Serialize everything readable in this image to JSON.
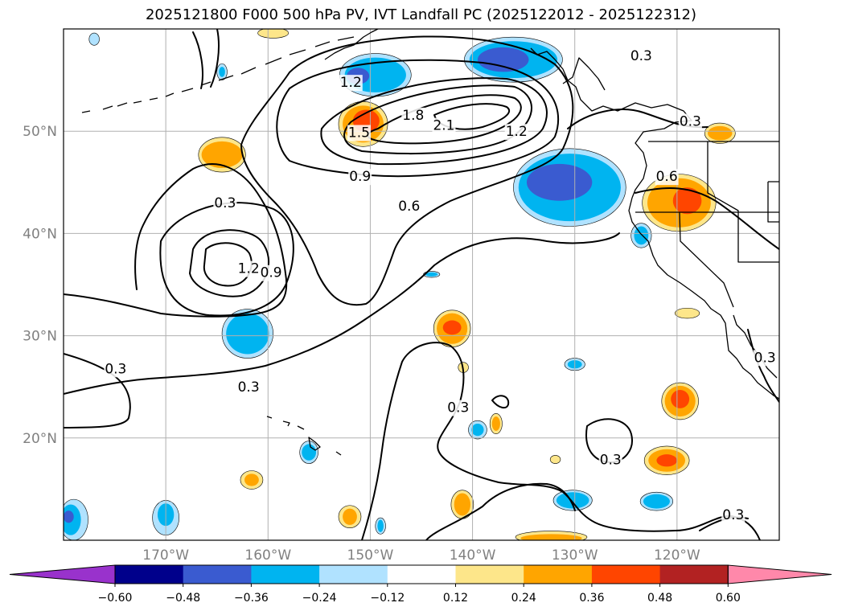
{
  "title": "2025121800 F000 500 hPa PV, IVT Landfall PC (2025122012 - 2025122312)",
  "map": {
    "lon_range": [
      -180,
      -110
    ],
    "lat_range": [
      10,
      60
    ],
    "lat_ticks": [
      {
        "value": 50,
        "label": "50°N"
      },
      {
        "value": 40,
        "label": "40°N"
      },
      {
        "value": 30,
        "label": "30°N"
      },
      {
        "value": 20,
        "label": "20°N"
      }
    ],
    "lon_ticks": [
      {
        "value": -170,
        "label": "170°W"
      },
      {
        "value": -160,
        "label": "160°W"
      },
      {
        "value": -150,
        "label": "150°W"
      },
      {
        "value": -140,
        "label": "140°W"
      },
      {
        "value": -130,
        "label": "130°W"
      },
      {
        "value": -120,
        "label": "120°W"
      }
    ],
    "grid": true
  },
  "contour_labels": [
    {
      "text": "1.2",
      "lon": -151.9,
      "lat": 54.8
    },
    {
      "text": "1.5",
      "lon": -151.1,
      "lat": 49.9
    },
    {
      "text": "1.8",
      "lon": -145.8,
      "lat": 51.6
    },
    {
      "text": "2.1",
      "lon": -142.8,
      "lat": 50.6
    },
    {
      "text": "1.2",
      "lon": -135.7,
      "lat": 50.0
    },
    {
      "text": "0.9",
      "lon": -151.0,
      "lat": 45.6
    },
    {
      "text": "0.6",
      "lon": -146.2,
      "lat": 42.7
    },
    {
      "text": "0.3",
      "lon": -164.2,
      "lat": 43.0
    },
    {
      "text": "1.2",
      "lon": -161.9,
      "lat": 36.6
    },
    {
      "text": "0.9",
      "lon": -159.7,
      "lat": 36.2
    },
    {
      "text": "0.3",
      "lon": -174.9,
      "lat": 26.8
    },
    {
      "text": "0.3",
      "lon": -161.9,
      "lat": 25.0
    },
    {
      "text": "0.3",
      "lon": -141.4,
      "lat": 23.0
    },
    {
      "text": "0.6",
      "lon": -121.0,
      "lat": 45.6
    },
    {
      "text": "0.3",
      "lon": -118.7,
      "lat": 51.0
    },
    {
      "text": "0.3",
      "lon": -123.5,
      "lat": 57.4
    },
    {
      "text": "0.3",
      "lon": -126.5,
      "lat": 17.9
    },
    {
      "text": "0.3",
      "lon": -114.5,
      "lat": 12.5
    },
    {
      "text": "0.3",
      "lon": -111.4,
      "lat": 27.9
    }
  ],
  "colorbar": {
    "tick_labels": [
      "−0.60",
      "−0.48",
      "−0.36",
      "−0.24",
      "−0.12",
      "0.12",
      "0.24",
      "0.36",
      "0.48",
      "0.60"
    ],
    "colors": [
      "#9932cc",
      "#00008b",
      "#3a5bd0",
      "#00b4f0",
      "#b0e2ff",
      "#ffffff",
      "#fde68a",
      "#ffa500",
      "#ff4500",
      "#b22222",
      "#ff88aa"
    ]
  },
  "field_blobs": [
    {
      "color": "#fde68a",
      "lon": -164.5,
      "lat": 47.7,
      "rx_deg": 2.3,
      "ry_deg": 1.7
    },
    {
      "color": "#ffa500",
      "lon": -164.5,
      "lat": 47.7,
      "rx_deg": 2.0,
      "ry_deg": 1.3
    },
    {
      "color": "#fde68a",
      "lon": -150.7,
      "lat": 50.7,
      "rx_deg": 2.4,
      "ry_deg": 2.2
    },
    {
      "color": "#ffa500",
      "lon": -150.7,
      "lat": 50.7,
      "rx_deg": 2.0,
      "ry_deg": 1.8
    },
    {
      "color": "#ff4500",
      "lon": -150.4,
      "lat": 51.0,
      "rx_deg": 1.3,
      "ry_deg": 1.1
    },
    {
      "color": "#b0e2ff",
      "lon": -149.5,
      "lat": 55.5,
      "rx_deg": 3.5,
      "ry_deg": 2.1
    },
    {
      "color": "#00b4f0",
      "lon": -149.5,
      "lat": 55.5,
      "rx_deg": 3.0,
      "ry_deg": 1.7
    },
    {
      "color": "#3a5bd0",
      "lon": -151.2,
      "lat": 55.4,
      "rx_deg": 1.1,
      "ry_deg": 0.8
    },
    {
      "color": "#b0e2ff",
      "lon": -136.0,
      "lat": 57.0,
      "rx_deg": 4.8,
      "ry_deg": 2.2
    },
    {
      "color": "#00b4f0",
      "lon": -136.0,
      "lat": 57.0,
      "rx_deg": 4.3,
      "ry_deg": 1.8
    },
    {
      "color": "#3a5bd0",
      "lon": -137.0,
      "lat": 57.0,
      "rx_deg": 2.5,
      "ry_deg": 1.2
    },
    {
      "color": "#b0e2ff",
      "lon": -130.5,
      "lat": 44.5,
      "rx_deg": 5.5,
      "ry_deg": 3.8
    },
    {
      "color": "#00b4f0",
      "lon": -130.5,
      "lat": 44.5,
      "rx_deg": 5.0,
      "ry_deg": 3.3
    },
    {
      "color": "#3a5bd0",
      "lon": -131.5,
      "lat": 45.0,
      "rx_deg": 3.2,
      "ry_deg": 1.8
    },
    {
      "color": "#fde68a",
      "lon": -119.8,
      "lat": 43.0,
      "rx_deg": 3.6,
      "ry_deg": 2.8
    },
    {
      "color": "#ffa500",
      "lon": -119.8,
      "lat": 43.0,
      "rx_deg": 3.1,
      "ry_deg": 2.4
    },
    {
      "color": "#ff4500",
      "lon": -119.0,
      "lat": 43.2,
      "rx_deg": 1.4,
      "ry_deg": 1.3
    },
    {
      "color": "#fde68a",
      "lon": -115.8,
      "lat": 49.8,
      "rx_deg": 1.5,
      "ry_deg": 1.0
    },
    {
      "color": "#ffa500",
      "lon": -115.8,
      "lat": 49.8,
      "rx_deg": 1.2,
      "ry_deg": 0.7
    },
    {
      "color": "#b0e2ff",
      "lon": -123.5,
      "lat": 39.8,
      "rx_deg": 1.0,
      "ry_deg": 1.2
    },
    {
      "color": "#00b4f0",
      "lon": -123.5,
      "lat": 39.8,
      "rx_deg": 0.7,
      "ry_deg": 0.9
    },
    {
      "color": "#b0e2ff",
      "lon": -162.0,
      "lat": 30.2,
      "rx_deg": 2.5,
      "ry_deg": 2.4
    },
    {
      "color": "#00b4f0",
      "lon": -162.0,
      "lat": 30.2,
      "rx_deg": 2.1,
      "ry_deg": 2.0
    },
    {
      "color": "#fde68a",
      "lon": -142.0,
      "lat": 30.7,
      "rx_deg": 1.8,
      "ry_deg": 1.8
    },
    {
      "color": "#ffa500",
      "lon": -142.0,
      "lat": 30.7,
      "rx_deg": 1.5,
      "ry_deg": 1.5
    },
    {
      "color": "#ff4500",
      "lon": -142.0,
      "lat": 30.8,
      "rx_deg": 0.9,
      "ry_deg": 0.7
    },
    {
      "color": "#b0e2ff",
      "lon": -130.0,
      "lat": 27.2,
      "rx_deg": 1.0,
      "ry_deg": 0.6
    },
    {
      "color": "#00b4f0",
      "lon": -130.0,
      "lat": 27.2,
      "rx_deg": 0.7,
      "ry_deg": 0.4
    },
    {
      "color": "#fde68a",
      "lon": -119.7,
      "lat": 23.6,
      "rx_deg": 1.8,
      "ry_deg": 1.8
    },
    {
      "color": "#ffa500",
      "lon": -119.7,
      "lat": 23.6,
      "rx_deg": 1.5,
      "ry_deg": 1.5
    },
    {
      "color": "#ff4500",
      "lon": -119.7,
      "lat": 23.8,
      "rx_deg": 0.9,
      "ry_deg": 0.9
    },
    {
      "color": "#fde68a",
      "lon": -121.0,
      "lat": 17.8,
      "rx_deg": 2.2,
      "ry_deg": 1.4
    },
    {
      "color": "#ffa500",
      "lon": -121.0,
      "lat": 17.8,
      "rx_deg": 1.8,
      "ry_deg": 1.1
    },
    {
      "color": "#ff4500",
      "lon": -121.0,
      "lat": 17.8,
      "rx_deg": 1.0,
      "ry_deg": 0.6
    },
    {
      "color": "#b0e2ff",
      "lon": -139.5,
      "lat": 20.8,
      "rx_deg": 0.9,
      "ry_deg": 0.9
    },
    {
      "color": "#00b4f0",
      "lon": -139.5,
      "lat": 20.8,
      "rx_deg": 0.6,
      "ry_deg": 0.6
    },
    {
      "color": "#b0e2ff",
      "lon": -156.0,
      "lat": 18.6,
      "rx_deg": 0.9,
      "ry_deg": 1.1
    },
    {
      "color": "#00b4f0",
      "lon": -156.0,
      "lat": 18.6,
      "rx_deg": 0.7,
      "ry_deg": 0.8
    },
    {
      "color": "#fde68a",
      "lon": -161.6,
      "lat": 15.9,
      "rx_deg": 1.1,
      "ry_deg": 0.9
    },
    {
      "color": "#ffa500",
      "lon": -161.6,
      "lat": 15.9,
      "rx_deg": 0.7,
      "ry_deg": 0.6
    },
    {
      "color": "#b0e2ff",
      "lon": -170.0,
      "lat": 12.2,
      "rx_deg": 1.3,
      "ry_deg": 1.7
    },
    {
      "color": "#00b4f0",
      "lon": -170.0,
      "lat": 12.5,
      "rx_deg": 0.8,
      "ry_deg": 1.1
    },
    {
      "color": "#fde68a",
      "lon": -152.0,
      "lat": 12.3,
      "rx_deg": 1.1,
      "ry_deg": 1.1
    },
    {
      "color": "#ffa500",
      "lon": -152.0,
      "lat": 12.3,
      "rx_deg": 0.7,
      "ry_deg": 0.8
    },
    {
      "color": "#b0e2ff",
      "lon": -149.0,
      "lat": 11.4,
      "rx_deg": 0.5,
      "ry_deg": 0.8
    },
    {
      "color": "#00b4f0",
      "lon": -149.0,
      "lat": 11.4,
      "rx_deg": 0.3,
      "ry_deg": 0.6
    },
    {
      "color": "#fde68a",
      "lon": -141.0,
      "lat": 13.5,
      "rx_deg": 1.1,
      "ry_deg": 1.4
    },
    {
      "color": "#ffa500",
      "lon": -141.0,
      "lat": 13.5,
      "rx_deg": 0.8,
      "ry_deg": 1.1
    },
    {
      "color": "#b0e2ff",
      "lon": -130.2,
      "lat": 13.9,
      "rx_deg": 1.9,
      "ry_deg": 1.0
    },
    {
      "color": "#00b4f0",
      "lon": -130.2,
      "lat": 13.9,
      "rx_deg": 1.6,
      "ry_deg": 0.8
    },
    {
      "color": "#b0e2ff",
      "lon": -122.0,
      "lat": 13.8,
      "rx_deg": 1.6,
      "ry_deg": 0.9
    },
    {
      "color": "#00b4f0",
      "lon": -122.0,
      "lat": 13.8,
      "rx_deg": 1.3,
      "ry_deg": 0.7
    },
    {
      "color": "#fde68a",
      "lon": -132.3,
      "lat": 10.3,
      "rx_deg": 3.5,
      "ry_deg": 0.6
    },
    {
      "color": "#ffa500",
      "lon": -132.3,
      "lat": 10.2,
      "rx_deg": 3.0,
      "ry_deg": 0.4
    },
    {
      "color": "#fde68a",
      "lon": -119.0,
      "lat": 32.2,
      "rx_deg": 1.2,
      "ry_deg": 0.5
    },
    {
      "color": "#fde68a",
      "lon": -159.5,
      "lat": 59.6,
      "rx_deg": 1.5,
      "ry_deg": 0.5
    },
    {
      "color": "#b0e2ff",
      "lon": -179.0,
      "lat": 12.0,
      "rx_deg": 1.4,
      "ry_deg": 2.0
    },
    {
      "color": "#00b4f0",
      "lon": -179.3,
      "lat": 12.0,
      "rx_deg": 1.0,
      "ry_deg": 1.5
    },
    {
      "color": "#3a5bd0",
      "lon": -179.5,
      "lat": 12.3,
      "rx_deg": 0.5,
      "ry_deg": 0.6
    },
    {
      "color": "#b0e2ff",
      "lon": -144.0,
      "lat": 36.0,
      "rx_deg": 0.8,
      "ry_deg": 0.3
    },
    {
      "color": "#00b4f0",
      "lon": -144.0,
      "lat": 36.0,
      "rx_deg": 0.6,
      "ry_deg": 0.2
    },
    {
      "color": "#fde68a",
      "lon": -140.9,
      "lat": 26.9,
      "rx_deg": 0.5,
      "ry_deg": 0.5
    },
    {
      "color": "#fde68a",
      "lon": -137.7,
      "lat": 21.4,
      "rx_deg": 0.6,
      "ry_deg": 1.0
    },
    {
      "color": "#ffa500",
      "lon": -137.7,
      "lat": 21.4,
      "rx_deg": 0.4,
      "ry_deg": 0.7
    },
    {
      "color": "#fde68a",
      "lon": -131.9,
      "lat": 17.9,
      "rx_deg": 0.5,
      "ry_deg": 0.4
    },
    {
      "color": "#b0e2ff",
      "lon": -177.0,
      "lat": 59.0,
      "rx_deg": 0.5,
      "ry_deg": 0.6
    },
    {
      "color": "#b0e2ff",
      "lon": -164.5,
      "lat": 55.8,
      "rx_deg": 0.5,
      "ry_deg": 0.8
    },
    {
      "color": "#00b4f0",
      "lon": -164.5,
      "lat": 55.8,
      "rx_deg": 0.3,
      "ry_deg": 0.5
    }
  ]
}
